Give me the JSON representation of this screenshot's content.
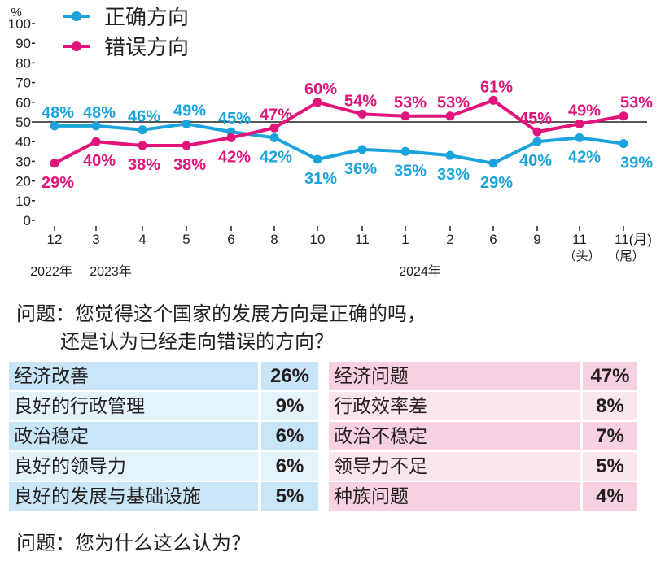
{
  "chart_data": {
    "type": "line",
    "y_unit_label": "%",
    "ylim": [
      0,
      100
    ],
    "yticks": [
      0,
      10,
      20,
      30,
      40,
      50,
      60,
      70,
      80,
      90,
      100
    ],
    "reference_line": 50,
    "categories": [
      "12",
      "3",
      "4",
      "5",
      "6",
      "8",
      "10",
      "11",
      "1",
      "2",
      "6",
      "9",
      "11",
      "11(月)"
    ],
    "category_sublabels": [
      "",
      "",
      "",
      "",
      "",
      "",
      "",
      "",
      "",
      "",
      "",
      "",
      "（头）",
      "（尾）"
    ],
    "year_labels": [
      {
        "text": "2022年",
        "at": 0
      },
      {
        "text": "2023年",
        "at": 1
      },
      {
        "text": "2024年",
        "at": 8
      }
    ],
    "series": [
      {
        "name": "正确方向",
        "color": "#1aa3dd",
        "values": [
          48,
          48,
          46,
          49,
          45,
          42,
          31,
          36,
          35,
          33,
          29,
          40,
          42,
          39
        ]
      },
      {
        "name": "错误方向",
        "color": "#e0147a",
        "values": [
          29,
          40,
          38,
          38,
          42,
          47,
          60,
          54,
          53,
          53,
          61,
          45,
          49,
          53
        ]
      }
    ],
    "legend_placement": "top-left"
  },
  "question1": {
    "line1": "问题：您觉得这个国家的发展方向是正确的吗，",
    "line2": "还是认为已经走向错误的方向？"
  },
  "question2": "问题：您为什么这么认为？",
  "table": {
    "right_reasons": [
      {
        "label": "经济改善",
        "pct": "26%"
      },
      {
        "label": "良好的行政管理",
        "pct": "9%"
      },
      {
        "label": "政治稳定",
        "pct": "6%"
      },
      {
        "label": "良好的领导力",
        "pct": "6%"
      },
      {
        "label": "良好的发展与基础设施",
        "pct": "5%"
      }
    ],
    "wrong_reasons": [
      {
        "label": "经济问题",
        "pct": "47%"
      },
      {
        "label": "行政效率差",
        "pct": "8%"
      },
      {
        "label": "政治不稳定",
        "pct": "7%"
      },
      {
        "label": "领导力不足",
        "pct": "5%"
      },
      {
        "label": "种族问题",
        "pct": "4%"
      }
    ],
    "colors": {
      "blue_dark": "#c9e6f8",
      "blue_light": "#e4f3fc",
      "pink_dark": "#f7d1e2",
      "pink_light": "#fbe6ef"
    }
  }
}
